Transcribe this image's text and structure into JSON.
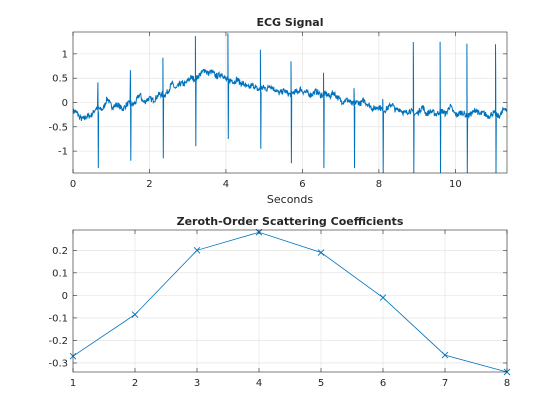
{
  "chart_data": [
    {
      "type": "line",
      "title": "ECG Signal",
      "xlabel": "Seconds",
      "ylabel": "",
      "xlim": [
        0,
        11.35
      ],
      "ylim": [
        -1.45,
        1.45
      ],
      "xticks": [
        0,
        2,
        4,
        6,
        8,
        10
      ],
      "yticks": [
        -1,
        -0.5,
        0,
        0.5,
        1
      ],
      "xtick_labels": [
        "0",
        "2",
        "4",
        "6",
        "8",
        "10"
      ],
      "ytick_labels": [
        "-1",
        "-0.5",
        "0",
        "0.5",
        "1"
      ],
      "grid": true,
      "color": "#0072BD",
      "baseline": [
        [
          0,
          -0.18
        ],
        [
          0.3,
          -0.35
        ],
        [
          0.6,
          -0.15
        ],
        [
          1.0,
          -0.05
        ],
        [
          1.3,
          -0.1
        ],
        [
          1.6,
          0.0
        ],
        [
          2.0,
          0.05
        ],
        [
          2.3,
          0.15
        ],
        [
          2.7,
          0.3
        ],
        [
          3.0,
          0.45
        ],
        [
          3.3,
          0.55
        ],
        [
          3.6,
          0.6
        ],
        [
          3.9,
          0.55
        ],
        [
          4.2,
          0.4
        ],
        [
          4.5,
          0.35
        ],
        [
          4.8,
          0.3
        ],
        [
          5.2,
          0.25
        ],
        [
          5.6,
          0.2
        ],
        [
          6.0,
          0.18
        ],
        [
          6.4,
          0.2
        ],
        [
          6.8,
          0.1
        ],
        [
          7.2,
          0.02
        ],
        [
          7.6,
          -0.05
        ],
        [
          8.0,
          -0.12
        ],
        [
          8.4,
          -0.15
        ],
        [
          8.8,
          -0.2
        ],
        [
          9.2,
          -0.22
        ],
        [
          9.6,
          -0.2
        ],
        [
          10.0,
          -0.22
        ],
        [
          10.4,
          -0.25
        ],
        [
          10.8,
          -0.25
        ],
        [
          11.35,
          -0.25
        ]
      ],
      "r_peaks": [
        {
          "t": 0.65,
          "r": 0.55,
          "s": -1.35
        },
        {
          "t": 1.5,
          "r": 0.7,
          "s": -1.2
        },
        {
          "t": 2.35,
          "r": 0.75,
          "s": -1.15
        },
        {
          "t": 3.2,
          "r": 0.85,
          "s": -0.9
        },
        {
          "t": 4.05,
          "r": 0.95,
          "s": -0.75
        },
        {
          "t": 4.9,
          "r": 0.8,
          "s": -0.95
        },
        {
          "t": 5.7,
          "r": 0.65,
          "s": -1.25
        },
        {
          "t": 6.55,
          "r": 0.45,
          "s": -1.35
        },
        {
          "t": 7.35,
          "r": 0.3,
          "s": -1.35
        },
        {
          "t": 8.1,
          "r": 0.2,
          "s": -1.45
        },
        {
          "t": 8.9,
          "r": 1.45,
          "s": -1.45
        },
        {
          "t": 9.6,
          "r": 1.45,
          "s": -1.45
        },
        {
          "t": 10.3,
          "r": 1.45,
          "s": -1.45
        },
        {
          "t": 11.05,
          "r": 1.45,
          "s": -1.45
        }
      ]
    },
    {
      "type": "line",
      "title": "Zeroth-Order Scattering Coefficients",
      "xlabel": "",
      "ylabel": "",
      "xlim": [
        1,
        8
      ],
      "ylim": [
        -0.34,
        0.29
      ],
      "xticks": [
        1,
        2,
        3,
        4,
        5,
        6,
        7,
        8
      ],
      "yticks": [
        -0.3,
        -0.2,
        -0.1,
        0,
        0.1,
        0.2
      ],
      "xtick_labels": [
        "1",
        "2",
        "3",
        "4",
        "5",
        "6",
        "7",
        "8"
      ],
      "ytick_labels": [
        "-0.3",
        "-0.2",
        "-0.1",
        "0",
        "0.1",
        "0.2"
      ],
      "grid": true,
      "marker": "x",
      "color": "#0072BD",
      "x": [
        1,
        2,
        3,
        4,
        5,
        6,
        7,
        8
      ],
      "y": [
        -0.27,
        -0.085,
        0.2,
        0.28,
        0.19,
        -0.01,
        -0.265,
        -0.34
      ]
    }
  ]
}
